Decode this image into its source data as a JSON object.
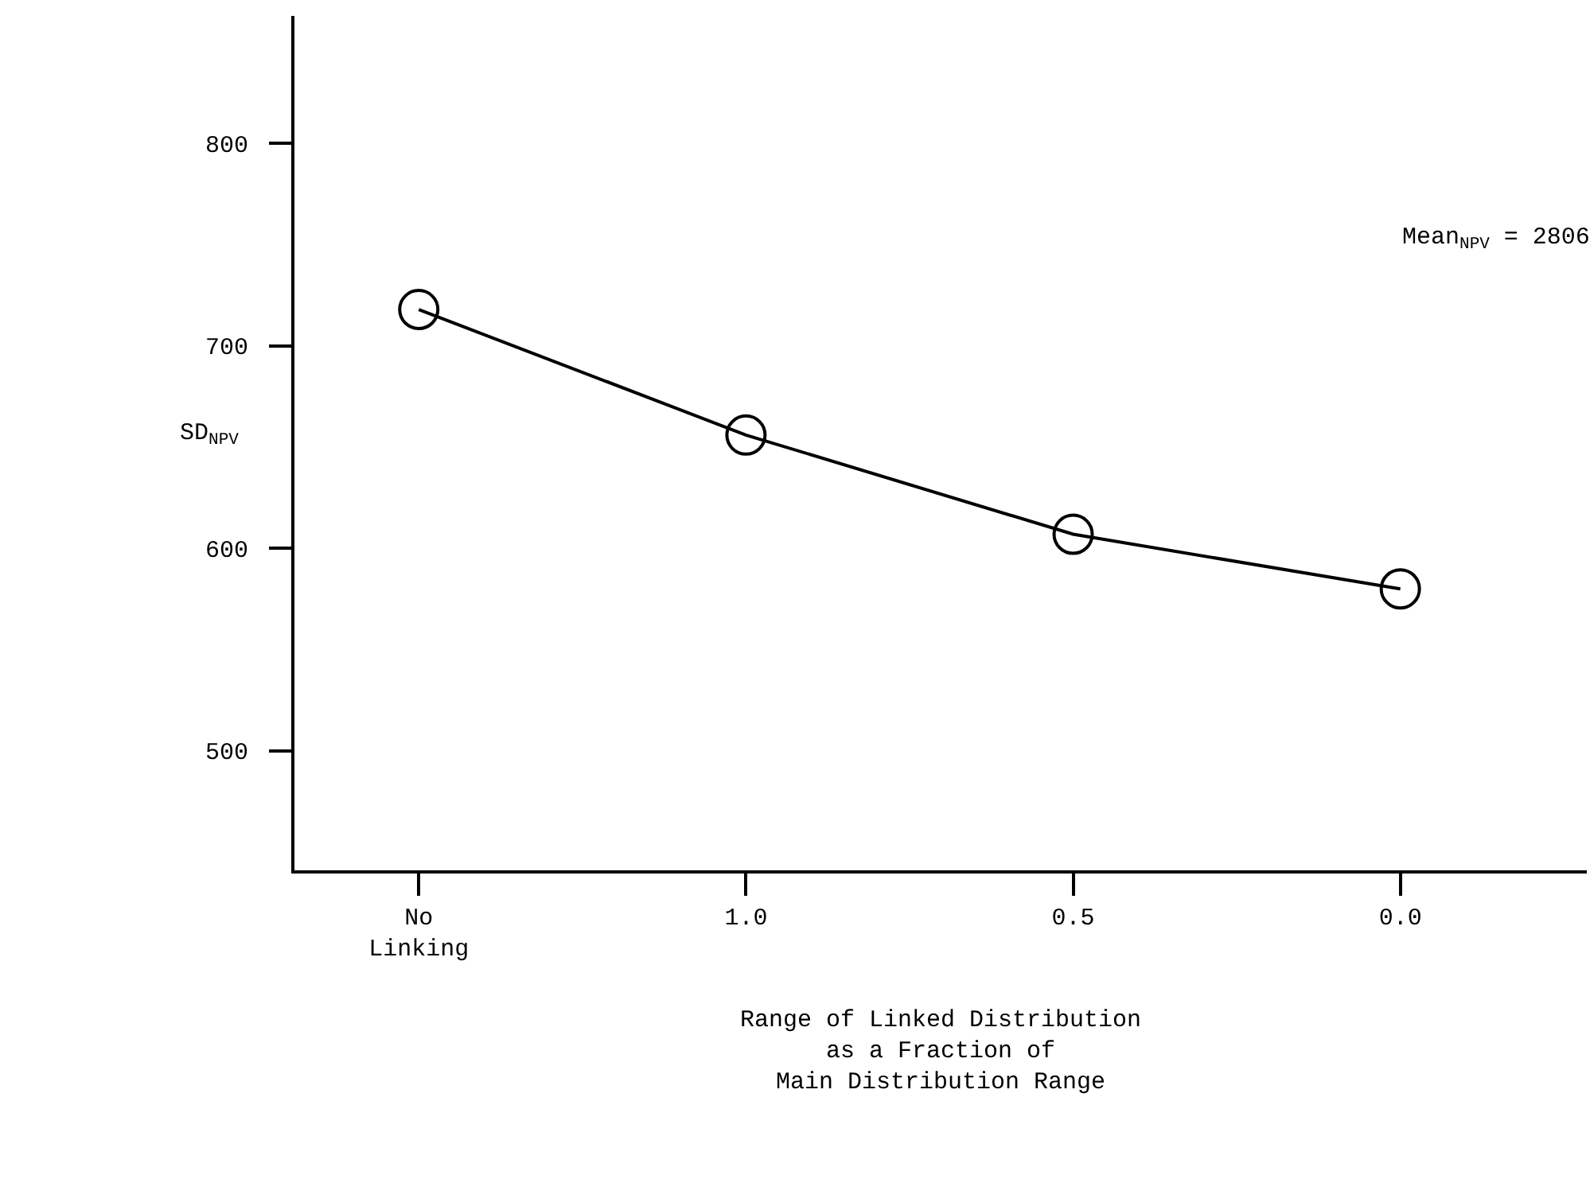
{
  "chart_data": {
    "type": "line",
    "categories": [
      "No\nLinking",
      "1.0",
      "0.5",
      "0.0"
    ],
    "series": [
      {
        "color": "#000000",
        "values": [
          718,
          656,
          607,
          580
        ]
      }
    ],
    "ylabel": "SD$_{NPV}$",
    "xlabel": "Range of Linked Distribution\nas a Fraction of\nMain Distribution Range",
    "annotations": [
      "Mean$_{NPV}$ = 2806"
    ],
    "ylim": [
      441,
      863
    ],
    "yticks": [
      500,
      600,
      700,
      800
    ],
    "marker": "circle",
    "line_style": "solid",
    "grid": false
  }
}
